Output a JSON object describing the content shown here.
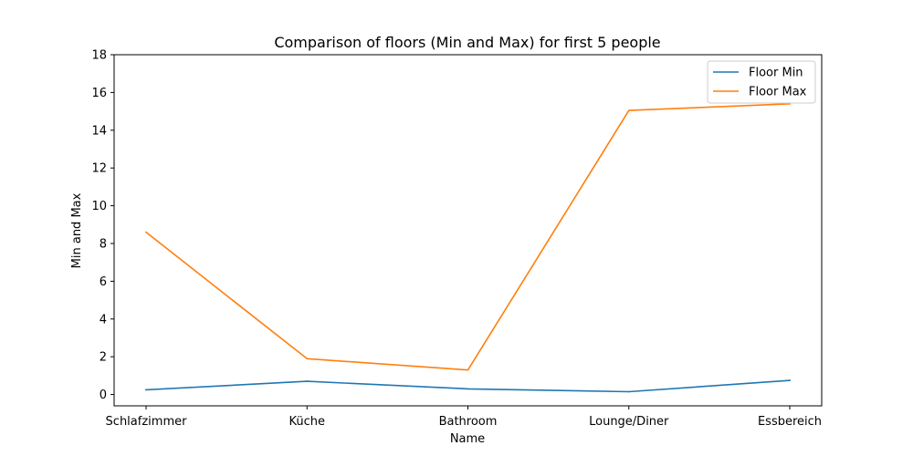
{
  "chart_data": {
    "type": "line",
    "title": "Comparison of floors (Min and Max) for first 5 people",
    "xlabel": "Name",
    "ylabel": "Min and Max",
    "categories": [
      "Schlafzimmer",
      "Küche",
      "Bathroom",
      "Lounge/Diner",
      "Essbereich"
    ],
    "ylim": [
      -0.6,
      18
    ],
    "yticks": [
      0,
      2,
      4,
      6,
      8,
      10,
      12,
      14,
      16,
      18
    ],
    "grid": false,
    "legend_position": "top-right",
    "series": [
      {
        "name": "Floor Min",
        "color": "#1f77b4",
        "values": [
          0.25,
          0.7,
          0.3,
          0.15,
          0.75
        ]
      },
      {
        "name": "Floor Max",
        "color": "#ff7f0e",
        "values": [
          8.6,
          1.9,
          1.3,
          15.05,
          15.4
        ]
      }
    ]
  }
}
